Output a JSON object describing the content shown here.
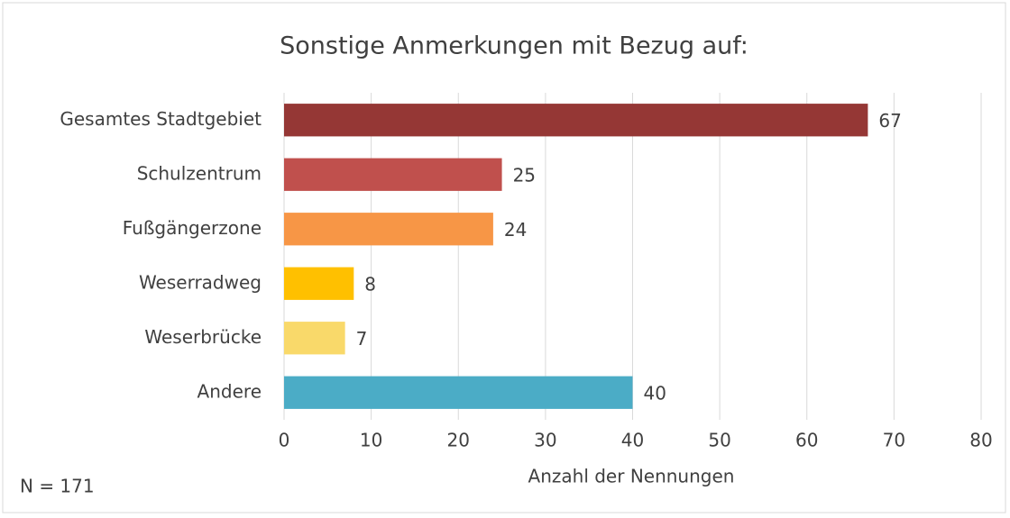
{
  "chart_data": {
    "type": "bar",
    "orientation": "horizontal",
    "title": "Sonstige Anmerkungen mit Bezug auf:",
    "xlabel": "Anzahl der Nennungen",
    "annotation": "N = 171",
    "categories": [
      "Gesamtes Stadtgebiet",
      "Schulzentrum",
      "Fußgängerzone",
      "Weserradweg",
      "Weserbrücke",
      "Andere"
    ],
    "values": [
      67,
      25,
      24,
      8,
      7,
      40
    ],
    "colors": [
      "#953735",
      "#c0504d",
      "#f79646",
      "#ffc000",
      "#f9d96a",
      "#4bacc6"
    ],
    "xlim": [
      0,
      80
    ],
    "xticks": [
      0,
      10,
      20,
      30,
      40,
      50,
      60,
      70,
      80
    ],
    "grid": true
  }
}
